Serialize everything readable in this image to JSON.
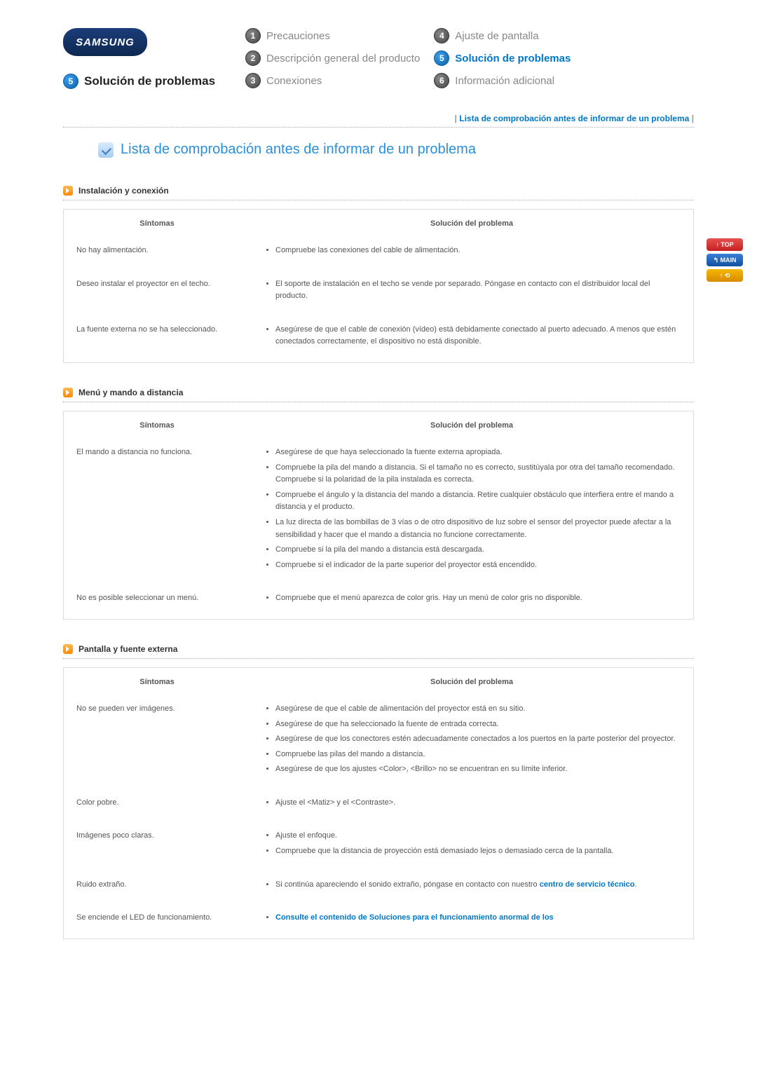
{
  "logo_text": "SAMSUNG",
  "current_section_num": "5",
  "current_section_label": "Solución de problemas",
  "nav": {
    "col1": [
      {
        "num": "1",
        "label": "Precauciones",
        "active": false
      },
      {
        "num": "2",
        "label": "Descripción general del producto",
        "active": false
      },
      {
        "num": "3",
        "label": "Conexiones",
        "active": false
      }
    ],
    "col2": [
      {
        "num": "4",
        "label": "Ajuste de pantalla",
        "active": false
      },
      {
        "num": "5",
        "label": "Solución de problemas",
        "active": true
      },
      {
        "num": "6",
        "label": "Información adicional",
        "active": false
      }
    ]
  },
  "top_link": "Lista de comprobación antes de informar de un problema",
  "page_title": "Lista de comprobación antes de informar de un problema",
  "side": {
    "top": "↑ TOP",
    "main": "↰ MAIN",
    "back": "↑ ⟲"
  },
  "sections": [
    {
      "title": "Instalación y conexión",
      "th_symptom": "Síntomas",
      "th_solution": "Solución del problema",
      "rows": [
        {
          "symptom": "No hay alimentación.",
          "solutions": [
            "Compruebe las conexiones del cable de alimentación."
          ]
        },
        {
          "symptom": "Deseo instalar el proyector en el techo.",
          "solutions": [
            "El soporte de instalación en el techo se vende por separado. Póngase en contacto con el distribuidor local del producto."
          ]
        },
        {
          "symptom": "La fuente externa no se ha seleccionado.",
          "solutions": [
            "Asegúrese de que el cable de conexión (vídeo) está debidamente conectado al puerto adecuado. A menos que estén conectados correctamente, el dispositivo no está disponible."
          ]
        }
      ]
    },
    {
      "title": "Menú y mando a distancia",
      "th_symptom": "Síntomas",
      "th_solution": "Solución del problema",
      "rows": [
        {
          "symptom": "El mando a distancia no funciona.",
          "solutions": [
            "Asegúrese de que haya seleccionado la fuente externa apropiada.",
            "Compruebe la pila del mando a distancia. Si el tamaño no es correcto, sustitúyala por otra del tamaño recomendado. Compruebe si la polaridad de la pila instalada es correcta.",
            "Compruebe el ángulo y la distancia del mando a distancia. Retire cualquier obstáculo que interfiera entre el mando a distancia y el producto.",
            "La luz directa de las bombillas de 3 vías o de otro dispositivo de luz sobre el sensor del proyector puede afectar a la sensibilidad y hacer que el mando a distancia no funcione correctamente.",
            "Compruebe si la pila del mando a distancia está descargada.",
            "Compruebe si el indicador de la parte superior del proyector está encendido."
          ]
        },
        {
          "symptom": "No es posible seleccionar un menú.",
          "solutions": [
            "Compruebe que el menú aparezca de color gris. Hay un menú de color gris no disponible."
          ]
        }
      ]
    },
    {
      "title": "Pantalla y fuente externa",
      "th_symptom": "Síntomas",
      "th_solution": "Solución del problema",
      "rows": [
        {
          "symptom": "No se pueden ver imágenes.",
          "solutions": [
            "Asegúrese de que el cable de alimentación del proyector está en su sitio.",
            "Asegúrese de que ha seleccionado la fuente de entrada correcta.",
            "Asegúrese de que los conectores estén adecuadamente conectados a los puertos en la parte posterior del proyector.",
            "Compruebe las pilas del mando a distancia.",
            "Asegúrese de que los ajustes <Color>, <Brillo> no se encuentran en su límite inferior."
          ]
        },
        {
          "symptom": "Color pobre.",
          "solutions": [
            "Ajuste el <Matiz> y el <Contraste>."
          ]
        },
        {
          "symptom": "Imágenes poco claras.",
          "solutions": [
            "Ajuste el enfoque.",
            "Compruebe que la distancia de proyección está demasiado lejos o demasiado cerca de la pantalla."
          ]
        },
        {
          "symptom": "Ruido extraño.",
          "solutions_html": "Si continúa apareciendo el sonido extraño, póngase en contacto con nuestro <a class=\"blue\" href=\"#\" data-name=\"service-center-link\" data-interactable=\"true\">centro de servicio técnico</a>."
        },
        {
          "symptom": "Se enciende el LED de funcionamiento.",
          "solutions_link": "Consulte el contenido de Soluciones para el funcionamiento anormal de los"
        }
      ]
    }
  ]
}
